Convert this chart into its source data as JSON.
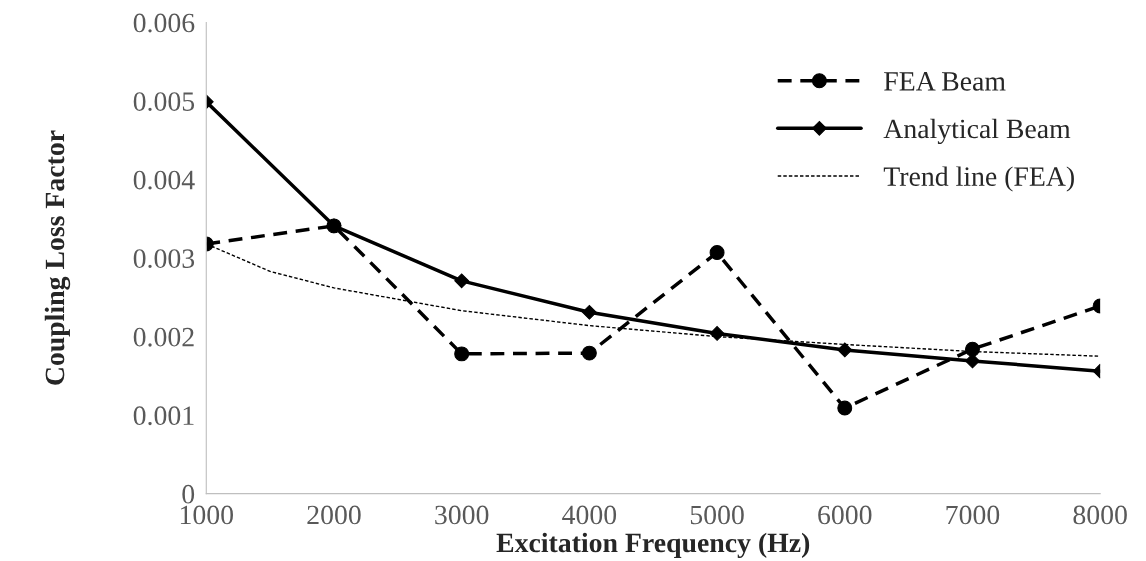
{
  "chart_data": {
    "type": "line",
    "xlabel": "Excitation Frequency (Hz)",
    "ylabel": "Coupling Loss Factor",
    "x": [
      1000,
      2000,
      3000,
      4000,
      5000,
      6000,
      7000,
      8000
    ],
    "xlim": [
      1000,
      8000
    ],
    "xticks": [
      1000,
      2000,
      3000,
      4000,
      5000,
      6000,
      7000,
      8000
    ],
    "ylim": [
      0,
      0.006
    ],
    "yticks": [
      0,
      0.001,
      0.002,
      0.003,
      0.004,
      0.005,
      0.006
    ],
    "grid": false,
    "legend": "top right",
    "series": [
      {
        "name": "FEA Beam",
        "color": "#000000",
        "marker": "circle",
        "line_style": "dashed",
        "values": [
          0.00318,
          0.00341,
          0.00178,
          0.00179,
          0.00307,
          0.00109,
          0.00184,
          0.00239
        ]
      },
      {
        "name": "Analytical Beam",
        "color": "#000000",
        "marker": "diamond",
        "line_style": "solid",
        "values": [
          0.00499,
          0.00341,
          0.00271,
          0.00231,
          0.00204,
          0.00183,
          0.00169,
          0.00156
        ]
      },
      {
        "name": "Trend line (FEA)",
        "type": "line",
        "color": "#000000",
        "marker": "none",
        "line_style": "dotted",
        "x": [
          1000,
          1500,
          2000,
          3000,
          4000,
          5000,
          6000,
          7000,
          8000
        ],
        "values": [
          0.00318,
          0.00283,
          0.00262,
          0.00233,
          0.00214,
          0.002,
          0.0019,
          0.00181,
          0.00175
        ]
      }
    ]
  }
}
